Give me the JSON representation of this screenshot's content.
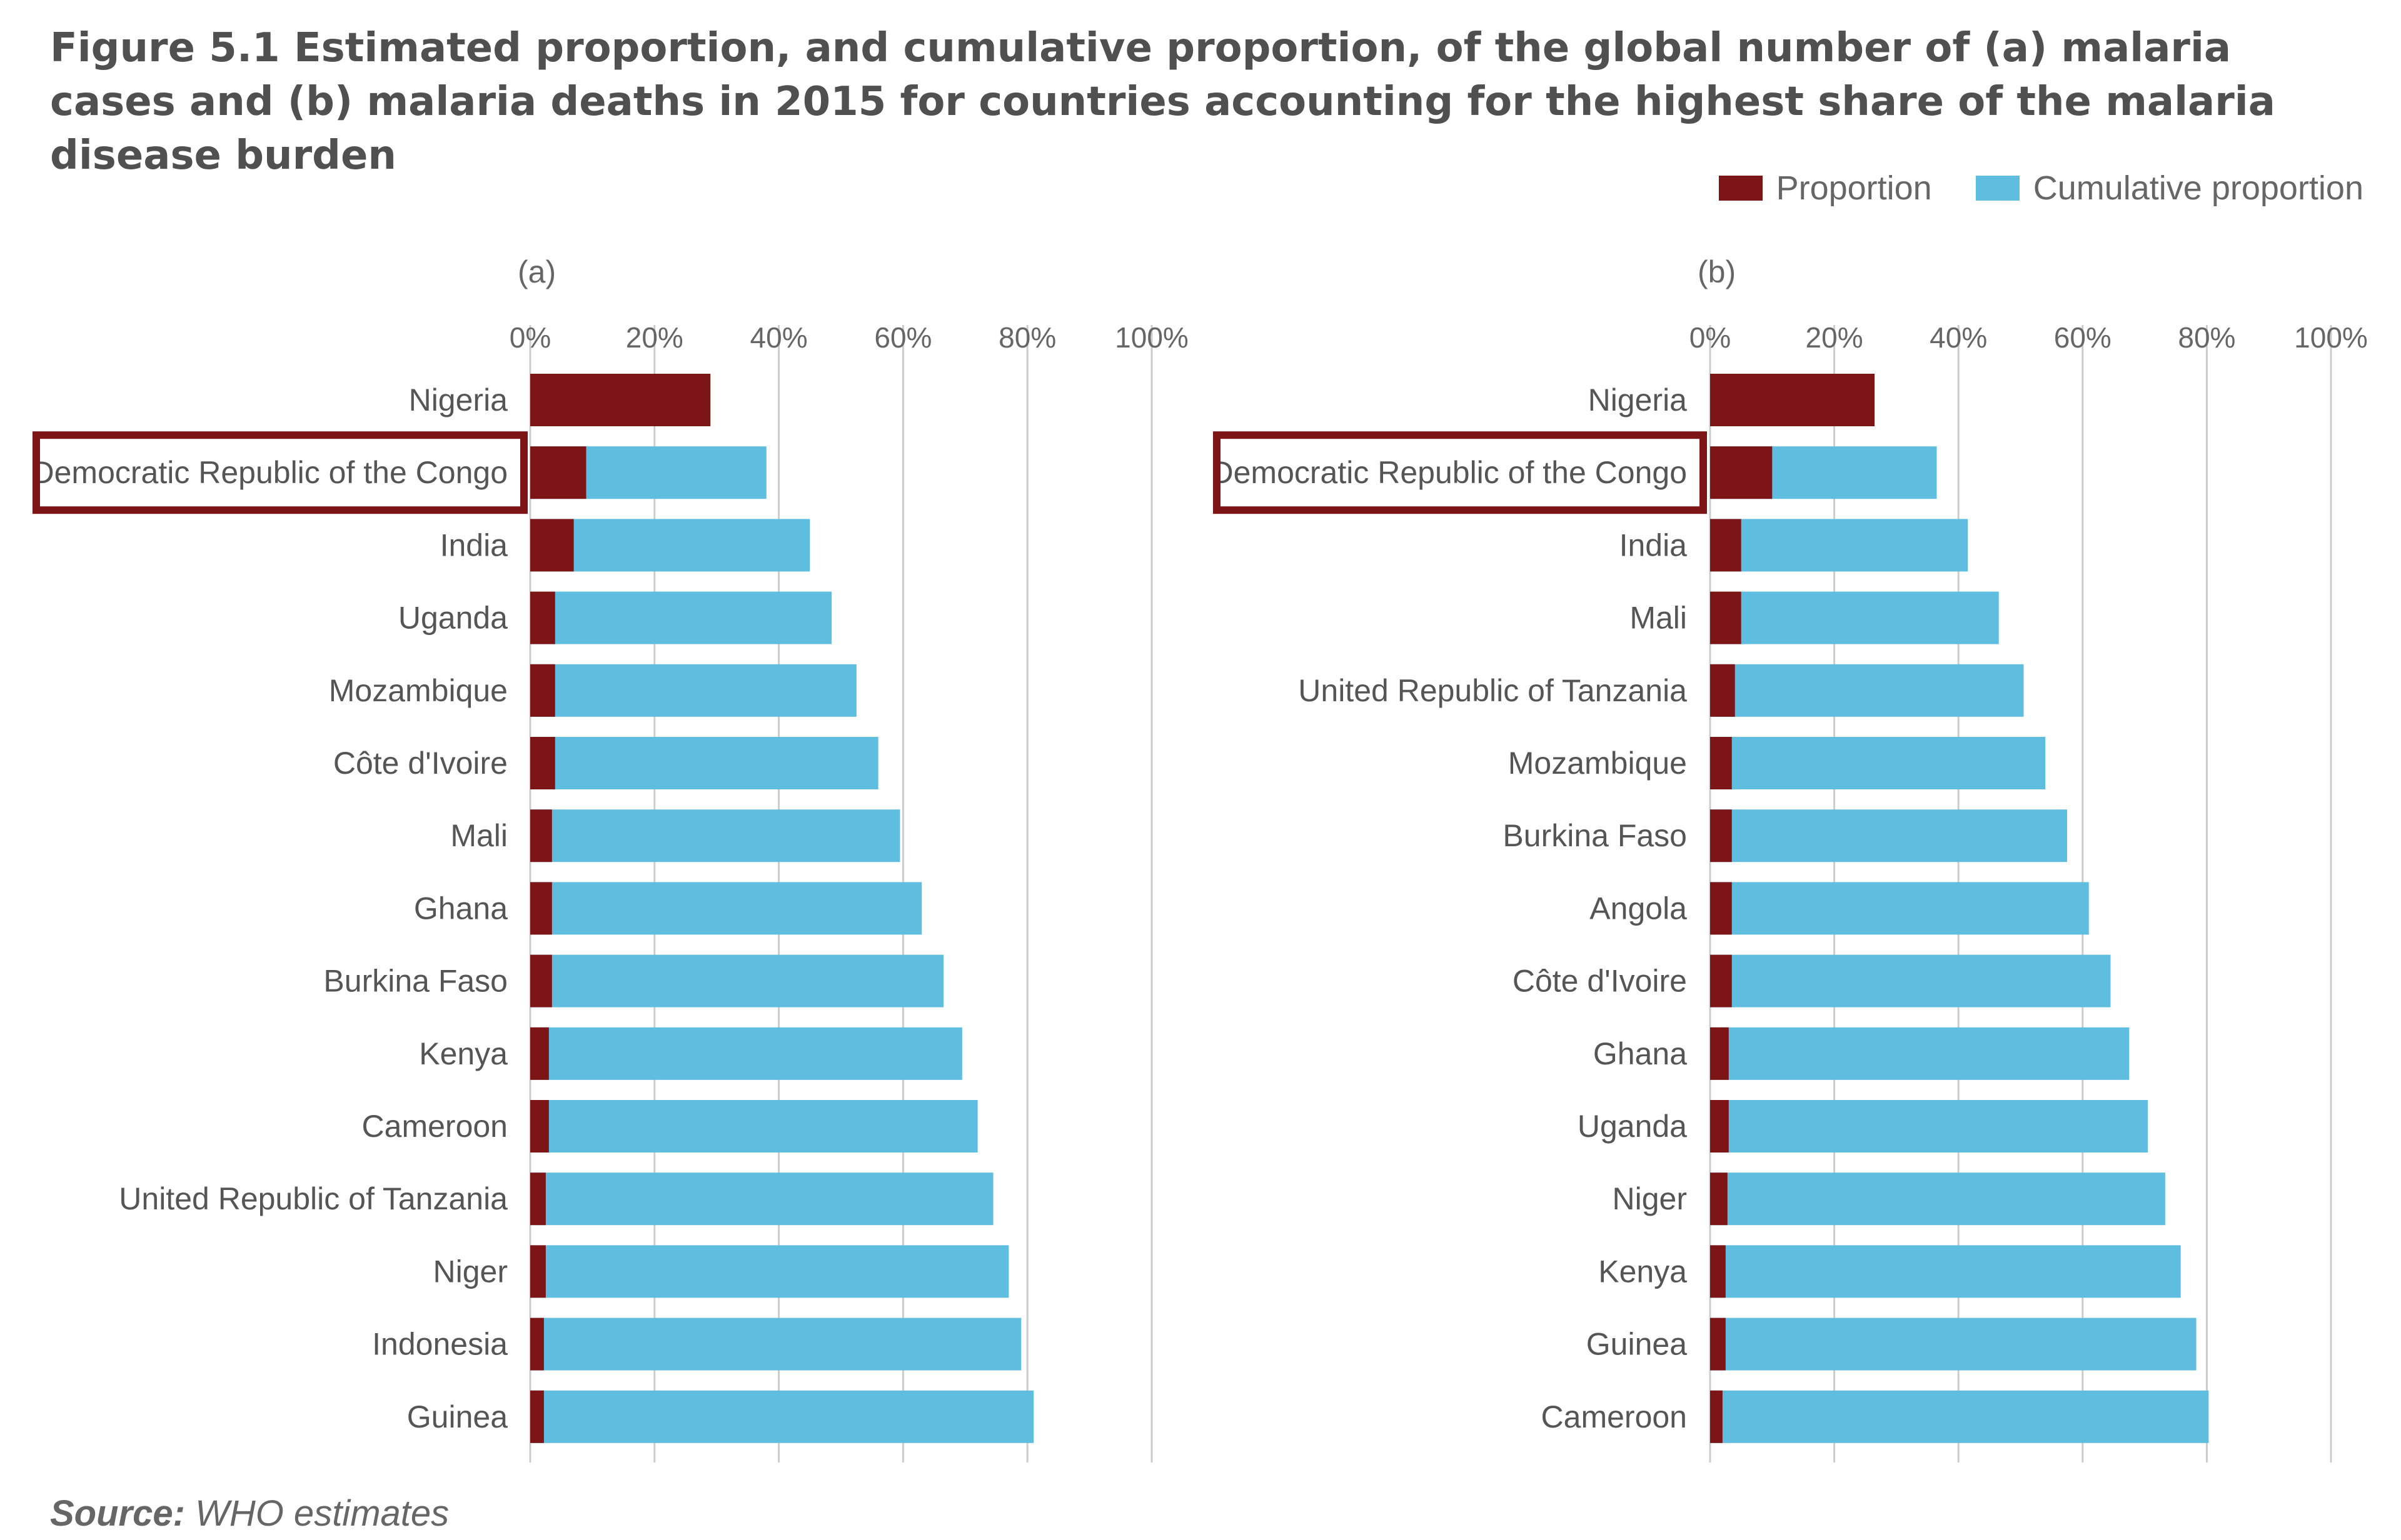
{
  "title": "Figure 5.1 Estimated proportion, and cumulative proportion, of the global number of (a) malaria cases and (b) malaria deaths in 2015 for countries accounting for the highest share of the malaria disease burden",
  "legend": [
    {
      "label": "Proportion",
      "color": "#7d1416"
    },
    {
      "label": "Cumulative proportion",
      "color": "#5fbde0"
    }
  ],
  "source": {
    "label": "Source:",
    "text": "WHO estimates"
  },
  "colors": {
    "proportion": "#7d1416",
    "cumulative": "#5fbde0",
    "highlight": "#7d1416",
    "grid": "#cccccc"
  },
  "chart_data": [
    {
      "type": "bar",
      "orientation": "horizontal",
      "stacked": true,
      "panel_label": "(a)",
      "xlim": [
        0,
        100
      ],
      "x_ticks": [
        "0%",
        "20%",
        "40%",
        "60%",
        "80%",
        "100%"
      ],
      "highlighted_category": "Democratic Republic of the Congo",
      "categories": [
        "Nigeria",
        "Democratic Republic of the Congo",
        "India",
        "Uganda",
        "Mozambique",
        "Côte d'Ivoire",
        "Mali",
        "Ghana",
        "Burkina Faso",
        "Kenya",
        "Cameroon",
        "United Republic of Tanzania",
        "Niger",
        "Indonesia",
        "Guinea"
      ],
      "series": [
        {
          "name": "Proportion",
          "values": [
            29,
            9,
            7,
            4,
            4,
            4,
            3.5,
            3.5,
            3.5,
            3,
            3,
            2.5,
            2.5,
            2.2,
            2.2
          ]
        },
        {
          "name": "Cumulative proportion",
          "values": [
            29,
            38,
            45,
            48.5,
            52.5,
            56,
            59.5,
            63,
            66.5,
            69.5,
            72,
            74.5,
            77,
            79,
            81
          ]
        }
      ]
    },
    {
      "type": "bar",
      "orientation": "horizontal",
      "stacked": true,
      "panel_label": "(b)",
      "xlim": [
        0,
        100
      ],
      "x_ticks": [
        "0%",
        "20%",
        "40%",
        "60%",
        "80%",
        "100%"
      ],
      "highlighted_category": "Democratic Republic of the Congo",
      "categories": [
        "Nigeria",
        "Democratic Republic of the Congo",
        "India",
        "Mali",
        "United Republic of Tanzania",
        "Mozambique",
        "Burkina Faso",
        "Angola",
        "Côte d'Ivoire",
        "Ghana",
        "Uganda",
        "Niger",
        "Kenya",
        "Guinea",
        "Cameroon"
      ],
      "series": [
        {
          "name": "Proportion",
          "values": [
            26.5,
            10,
            5,
            5,
            4,
            3.5,
            3.5,
            3.5,
            3.5,
            3,
            3,
            2.8,
            2.5,
            2.5,
            2
          ]
        },
        {
          "name": "Cumulative proportion",
          "values": [
            26.5,
            36.5,
            41.5,
            46.5,
            50.5,
            54,
            57.5,
            61,
            64.5,
            67.5,
            70.5,
            73.3,
            75.8,
            78.3,
            80.3
          ]
        }
      ]
    }
  ]
}
